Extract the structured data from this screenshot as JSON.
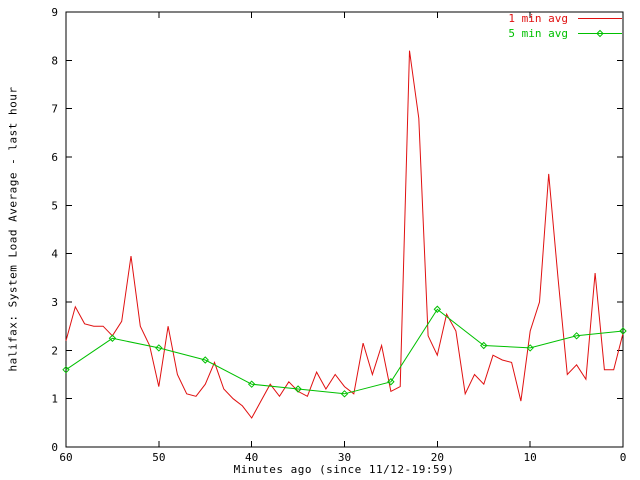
{
  "window": {
    "background": "#ffffff",
    "frame_color": "#000000"
  },
  "chart_data": {
    "type": "line",
    "title": "",
    "ylabel": "halifax: System Load Average - last hour",
    "xlabel": "Minutes ago (since 11/12-19:59)",
    "x_axis": {
      "left": 60,
      "right": 0,
      "ticks": [
        60,
        50,
        40,
        30,
        20,
        10,
        0
      ],
      "reversed": true
    },
    "y_axis": {
      "min": 0,
      "max": 9,
      "ticks": [
        0,
        1,
        2,
        3,
        4,
        5,
        6,
        7,
        8,
        9
      ]
    },
    "grid": false,
    "legend_position": "top-right-inside",
    "series": [
      {
        "name": "1 min avg",
        "color": "#e01010",
        "style": "line",
        "x": [
          60,
          59,
          58,
          57,
          56,
          55,
          54,
          53,
          52,
          51,
          50,
          49,
          48,
          47,
          46,
          45,
          44,
          43,
          42,
          41,
          40,
          39,
          38,
          37,
          36,
          35,
          34,
          33,
          32,
          31,
          30,
          29,
          28,
          27,
          26,
          25,
          24,
          23,
          22,
          21,
          20,
          19,
          18,
          17,
          16,
          15,
          14,
          13,
          12,
          11,
          10,
          9,
          8,
          7,
          6,
          5,
          4,
          3,
          2,
          1,
          0
        ],
        "values": [
          2.2,
          2.9,
          2.55,
          2.5,
          2.5,
          2.3,
          2.6,
          3.95,
          2.5,
          2.1,
          1.25,
          2.5,
          1.5,
          1.1,
          1.05,
          1.3,
          1.75,
          1.2,
          1.0,
          0.85,
          0.6,
          0.95,
          1.3,
          1.05,
          1.35,
          1.15,
          1.05,
          1.55,
          1.2,
          1.5,
          1.25,
          1.1,
          2.15,
          1.5,
          2.1,
          1.15,
          1.25,
          8.2,
          6.8,
          2.3,
          1.9,
          2.75,
          2.4,
          1.1,
          1.5,
          1.3,
          1.9,
          1.8,
          1.75,
          0.95,
          2.4,
          3.0,
          5.65,
          3.5,
          1.5,
          1.7,
          1.4,
          3.6,
          1.6,
          1.6,
          2.35
        ]
      },
      {
        "name": "5 min avg",
        "color": "#00c000",
        "style": "line-points",
        "x": [
          60,
          55,
          50,
          45,
          40,
          35,
          30,
          25,
          20,
          15,
          10,
          5,
          0
        ],
        "values": [
          1.6,
          2.25,
          2.05,
          1.8,
          1.3,
          1.2,
          1.1,
          1.35,
          2.85,
          2.1,
          2.05,
          2.3,
          2.4
        ]
      }
    ]
  }
}
